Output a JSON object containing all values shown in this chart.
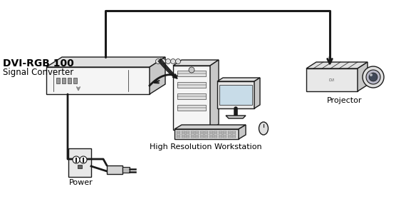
{
  "background_color": "#ffffff",
  "line_color": "#1a1a1a",
  "label_dvi_bold": "DVI-RGB 100",
  "label_dvi_sub": "Signal Converter",
  "label_power": "Power",
  "label_workstation": "High Resolution Workstation",
  "label_projector": "Projector",
  "fig_width": 5.7,
  "fig_height": 3.0,
  "dpi": 100,
  "face_light": "#f5f5f5",
  "face_mid": "#e0e0e0",
  "face_dark": "#c8c8c8",
  "face_darker": "#b0b0b0"
}
